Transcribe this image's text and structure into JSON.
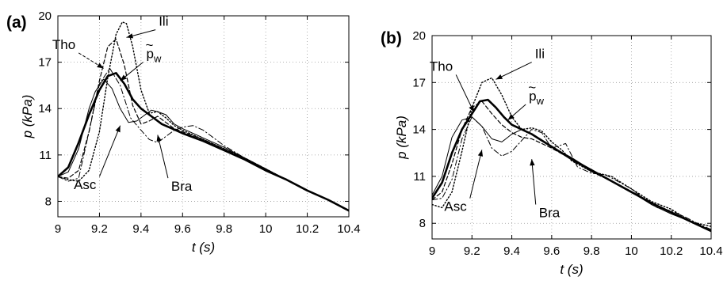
{
  "chart_data": [
    {
      "type": "line",
      "panel_label": "(a)",
      "xlabel": "t (s)",
      "ylabel": "p (kPa)",
      "xlim": [
        9,
        10.4
      ],
      "ylim": [
        7,
        20
      ],
      "xticks": [
        "9",
        "9.2",
        "9.4",
        "9.6",
        "9.8",
        "10",
        "10.2",
        "10.4"
      ],
      "yticks": [
        "8",
        "11",
        "14",
        "17",
        "20"
      ],
      "grid": true,
      "annotations": [
        {
          "text": "Tho",
          "x": 9.1,
          "y": 17.6,
          "target": [
            9.22,
            16.6
          ],
          "style": "dashed"
        },
        {
          "text": "Ili",
          "x": 9.47,
          "y": 19.1,
          "target": [
            9.33,
            18.6
          ]
        },
        {
          "text": "p",
          "tilde": true,
          "sub": "w",
          "x": 9.41,
          "y": 17.0,
          "target": [
            9.3,
            15.8
          ]
        },
        {
          "text": "Asc",
          "x": 9.2,
          "y": 9.6,
          "target": [
            9.3,
            12.9
          ]
        },
        {
          "text": "Bra",
          "x": 9.53,
          "y": 9.5,
          "target": [
            9.48,
            12.3
          ]
        }
      ],
      "series": [
        {
          "style": "solid-thin",
          "x": [
            9.0,
            9.05,
            9.1,
            9.15,
            9.18,
            9.22,
            9.26,
            9.3,
            9.34,
            9.38,
            9.42,
            9.45,
            9.48,
            9.52,
            9.56,
            9.6,
            9.7,
            9.8,
            9.9,
            10.0,
            10.1,
            10.2,
            10.3,
            10.4
          ],
          "y": [
            9.6,
            9.9,
            11.4,
            14.0,
            15.1,
            15.9,
            15.3,
            14.0,
            13.1,
            13.2,
            13.6,
            13.9,
            13.8,
            13.6,
            13.0,
            12.7,
            12.1,
            11.5,
            10.8,
            10.1,
            9.4,
            8.7,
            8.1,
            7.4
          ]
        },
        {
          "style": "dashed",
          "x": [
            9.0,
            9.05,
            9.1,
            9.15,
            9.2,
            9.24,
            9.28,
            9.32,
            9.36,
            9.4,
            9.44,
            9.48,
            9.52,
            9.56,
            9.6,
            9.7,
            9.8,
            9.9,
            10.0,
            10.1,
            10.2,
            10.3,
            10.4
          ],
          "y": [
            9.6,
            9.5,
            10.0,
            12.5,
            15.8,
            18.0,
            18.5,
            16.8,
            14.2,
            13.0,
            13.2,
            13.5,
            13.1,
            12.7,
            12.5,
            12.0,
            11.4,
            10.8,
            10.1,
            9.4,
            8.7,
            8.1,
            7.4
          ]
        },
        {
          "style": "dotted",
          "x": [
            9.0,
            9.05,
            9.1,
            9.15,
            9.2,
            9.24,
            9.28,
            9.31,
            9.33,
            9.36,
            9.4,
            9.44,
            9.48,
            9.52,
            9.56,
            9.6,
            9.7,
            9.8,
            9.9,
            10.0,
            10.1,
            10.2,
            10.3,
            10.4
          ],
          "y": [
            9.6,
            9.4,
            9.3,
            10.0,
            12.5,
            16.0,
            18.8,
            19.6,
            19.5,
            18.0,
            15.2,
            13.7,
            13.8,
            13.4,
            12.9,
            12.6,
            12.0,
            11.4,
            10.8,
            10.1,
            9.4,
            8.7,
            8.1,
            7.4
          ]
        },
        {
          "style": "dashdot",
          "x": [
            9.0,
            9.05,
            9.1,
            9.15,
            9.2,
            9.25,
            9.3,
            9.35,
            9.4,
            9.44,
            9.48,
            9.52,
            9.56,
            9.6,
            9.65,
            9.7,
            9.8,
            9.9,
            10.0,
            10.1,
            10.2,
            10.3,
            10.4
          ],
          "y": [
            9.6,
            9.3,
            9.5,
            12.5,
            15.6,
            16.6,
            15.5,
            13.4,
            12.6,
            12.0,
            11.8,
            12.2,
            12.6,
            12.8,
            12.9,
            12.6,
            11.6,
            10.8,
            10.1,
            9.4,
            8.7,
            8.1,
            7.4
          ]
        },
        {
          "style": "solid-thick",
          "x": [
            9.0,
            9.05,
            9.1,
            9.15,
            9.2,
            9.24,
            9.28,
            9.32,
            9.36,
            9.4,
            9.45,
            9.5,
            9.55,
            9.6,
            9.7,
            9.8,
            9.9,
            10.0,
            10.1,
            10.2,
            10.3,
            10.4
          ],
          "y": [
            9.6,
            10.2,
            11.8,
            13.6,
            15.2,
            16.1,
            16.3,
            15.6,
            14.6,
            14.0,
            13.5,
            13.0,
            12.7,
            12.4,
            11.9,
            11.3,
            10.7,
            10.0,
            9.4,
            8.7,
            8.1,
            7.4
          ]
        }
      ]
    },
    {
      "type": "line",
      "panel_label": "(b)",
      "xlabel": "t (s)",
      "ylabel": "p (kPa)",
      "xlim": [
        9,
        10.4
      ],
      "ylim": [
        7,
        20
      ],
      "xticks": [
        "9",
        "9.2",
        "9.4",
        "9.6",
        "9.8",
        "10",
        "10.2",
        "10.4"
      ],
      "yticks": [
        "8",
        "11",
        "14",
        "17",
        "20"
      ],
      "grid": true,
      "annotations": [
        {
          "text": "Tho",
          "x": 9.12,
          "y": 17.5,
          "target": [
            9.21,
            15.1
          ]
        },
        {
          "text": "Ili",
          "x": 9.5,
          "y": 18.3,
          "target": [
            9.32,
            17.2
          ]
        },
        {
          "text": "p",
          "tilde": true,
          "sub": "w",
          "x": 9.47,
          "y": 15.6,
          "target": [
            9.38,
            14.6
          ]
        },
        {
          "text": "Asc",
          "x": 9.19,
          "y": 9.6,
          "target": [
            9.25,
            12.7
          ]
        },
        {
          "text": "Bra",
          "x": 9.52,
          "y": 9.2,
          "target": [
            9.5,
            12.1
          ]
        }
      ],
      "series": [
        {
          "style": "solid-thin",
          "x": [
            9.0,
            9.05,
            9.1,
            9.15,
            9.2,
            9.25,
            9.3,
            9.35,
            9.4,
            9.45,
            9.5,
            9.55,
            9.6,
            9.7,
            9.8,
            9.9,
            10.0,
            10.1,
            10.2,
            10.3,
            10.4
          ],
          "y": [
            9.8,
            11.0,
            13.5,
            14.6,
            14.8,
            14.2,
            13.4,
            13.2,
            13.7,
            14.0,
            13.7,
            13.3,
            12.9,
            12.2,
            11.4,
            10.7,
            10.0,
            9.2,
            8.6,
            8.1,
            7.5
          ]
        },
        {
          "style": "dashed",
          "x": [
            9.0,
            9.05,
            9.1,
            9.15,
            9.2,
            9.25,
            9.3,
            9.35,
            9.4,
            9.45,
            9.5,
            9.55,
            9.6,
            9.7,
            9.8,
            9.9,
            10.0,
            10.1,
            10.2,
            10.3,
            10.4
          ],
          "y": [
            9.5,
            10.0,
            11.8,
            14.0,
            15.4,
            15.8,
            15.0,
            14.3,
            13.8,
            13.5,
            13.4,
            13.1,
            12.8,
            12.1,
            11.3,
            10.7,
            10.0,
            9.3,
            8.7,
            8.1,
            7.5
          ]
        },
        {
          "style": "dotted",
          "x": [
            9.0,
            9.05,
            9.1,
            9.15,
            9.2,
            9.25,
            9.3,
            9.35,
            9.4,
            9.45,
            9.5,
            9.55,
            9.6,
            9.65,
            9.7,
            9.8,
            9.9,
            10.0,
            10.1,
            10.2,
            10.3,
            10.4
          ],
          "y": [
            9.2,
            9.0,
            10.0,
            12.6,
            15.4,
            17.0,
            17.3,
            16.2,
            14.8,
            14.0,
            14.1,
            13.9,
            13.2,
            12.7,
            12.0,
            11.3,
            11.0,
            10.2,
            9.4,
            8.9,
            8.1,
            7.8
          ]
        },
        {
          "style": "dashdot",
          "x": [
            9.0,
            9.05,
            9.1,
            9.15,
            9.2,
            9.25,
            9.3,
            9.35,
            9.4,
            9.45,
            9.5,
            9.55,
            9.6,
            9.67,
            9.73,
            9.8,
            9.87,
            9.93,
            10.0,
            10.07,
            10.13,
            10.2,
            10.27,
            10.33,
            10.4
          ],
          "y": [
            9.5,
            9.6,
            10.8,
            13.4,
            14.8,
            14.2,
            12.8,
            12.3,
            12.6,
            13.3,
            14.0,
            13.8,
            12.8,
            13.1,
            11.6,
            11.2,
            11.1,
            10.7,
            10.2,
            9.5,
            9.0,
            8.8,
            8.4,
            8.0,
            7.6
          ]
        },
        {
          "style": "solid-thick",
          "x": [
            9.0,
            9.05,
            9.1,
            9.15,
            9.2,
            9.24,
            9.28,
            9.32,
            9.36,
            9.4,
            9.45,
            9.5,
            9.55,
            9.6,
            9.7,
            9.8,
            9.9,
            10.0,
            10.1,
            10.2,
            10.3,
            10.4
          ],
          "y": [
            9.6,
            10.6,
            12.5,
            14.0,
            15.0,
            15.8,
            15.9,
            15.4,
            14.8,
            14.3,
            14.0,
            13.7,
            13.3,
            12.9,
            12.1,
            11.4,
            10.7,
            10.0,
            9.3,
            8.7,
            8.1,
            7.5
          ]
        }
      ]
    }
  ]
}
